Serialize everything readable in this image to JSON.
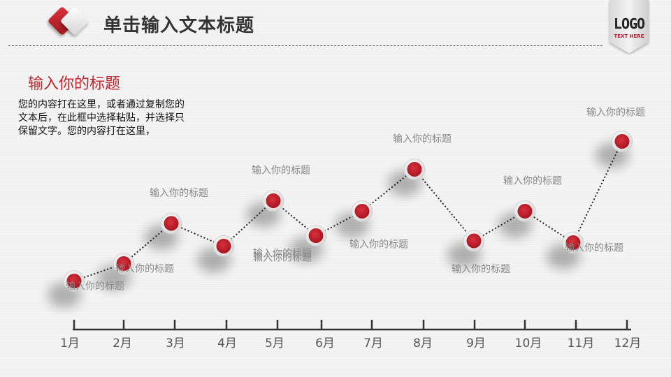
{
  "header": {
    "title": "单击输入文本标题",
    "logo": "LOGO",
    "logo_sub": "TEXT HERE",
    "brand_color": "#c1272d"
  },
  "intro": {
    "heading": "输入你的标题",
    "body": "您的内容打在这里，或者通过复制您的文本后，在此框中选择粘贴，并选择只保留文字。您的内容打在这里，"
  },
  "chart_data": {
    "type": "line",
    "categories": [
      "1月",
      "2月",
      "3月",
      "4月",
      "5月",
      "6月",
      "7月",
      "8月",
      "9月",
      "10月",
      "11月",
      "12月"
    ],
    "values": [
      1.5,
      2.5,
      4.8,
      3.5,
      6.1,
      4.1,
      5.5,
      7.9,
      3.8,
      5.5,
      3.7,
      9.5
    ],
    "point_labels": [
      "输入你的标题",
      "输入你的标题",
      "输入你的标题",
      "输入你的标题",
      "输入你的标题",
      "输入你的标题",
      "输入你的标题",
      "输入你的标题",
      "输入你的标题",
      "输入你的标题",
      "输入你的标题",
      "输入你的标题"
    ],
    "label_positions": [
      "below",
      "below",
      "above",
      "above",
      "above",
      "below",
      "below",
      "above",
      "below",
      "above",
      "below",
      "above"
    ],
    "line_style": "dotted",
    "marker_color": "#c1272d",
    "grid": false,
    "ylim": [
      0,
      10
    ]
  }
}
